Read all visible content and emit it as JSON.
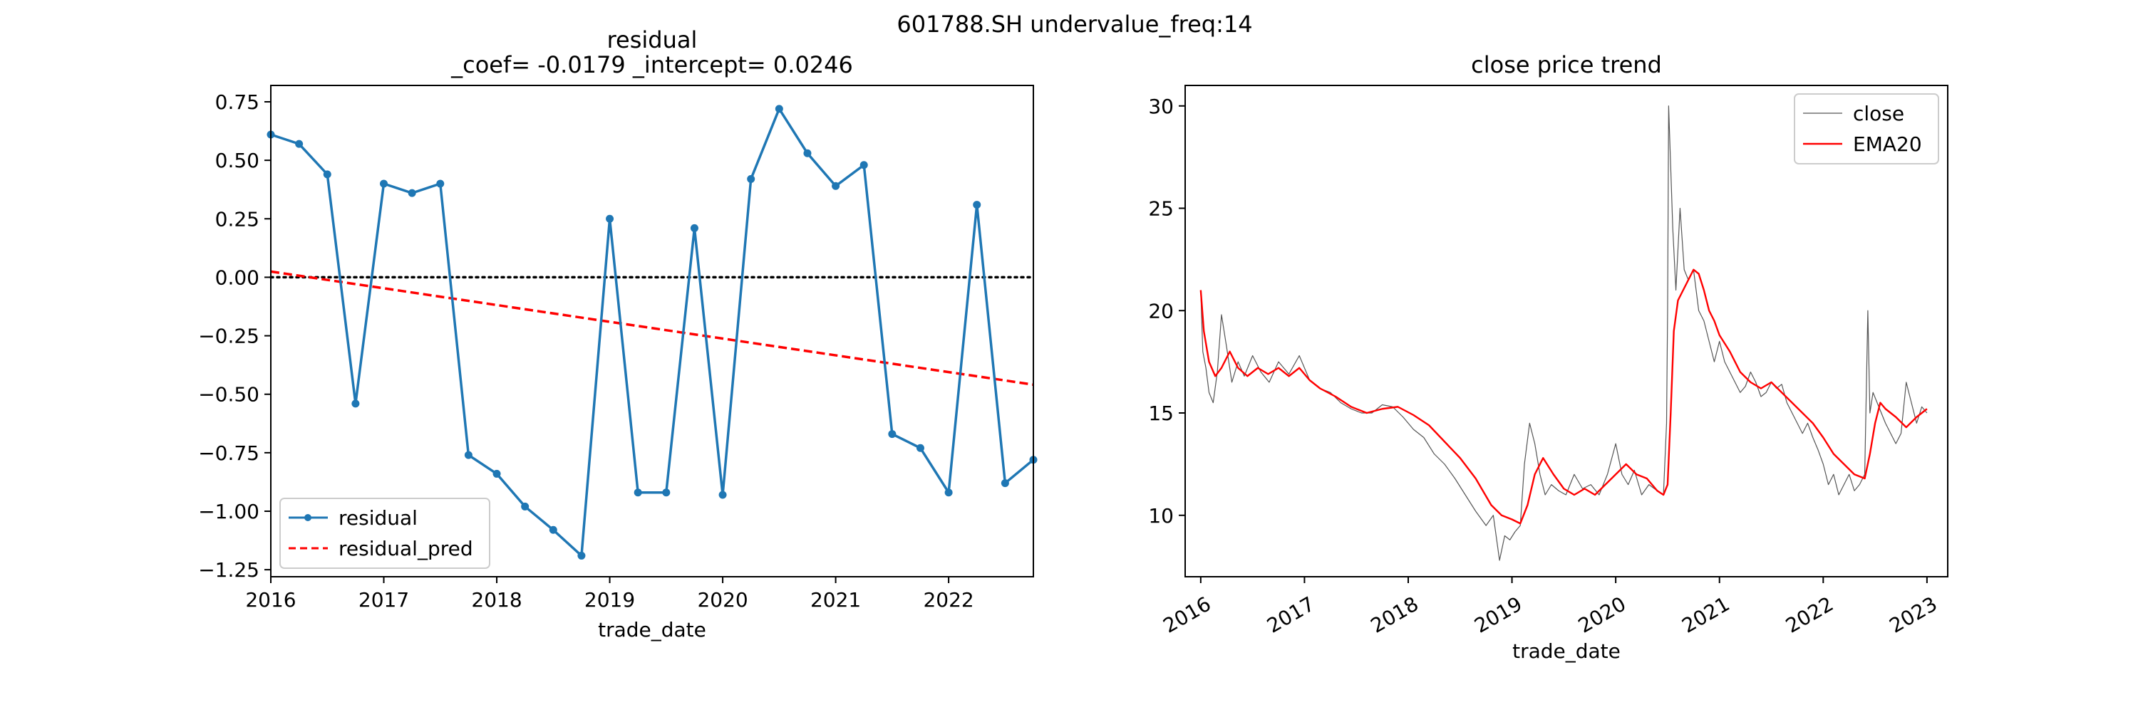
{
  "figure": {
    "suptitle": "601788.SH undervalue_freq:14"
  },
  "chart_data": [
    {
      "type": "line",
      "title_line1": "residual",
      "title_line2": "_coef= -0.0179    _intercept= 0.0246",
      "xlabel": "trade_date",
      "ylabel": "",
      "xlim": [
        2016.0,
        2022.75
      ],
      "ylim": [
        -1.28,
        0.82
      ],
      "x_ticks": [
        2016,
        2017,
        2018,
        2019,
        2020,
        2021,
        2022
      ],
      "x_tick_labels": [
        "2016",
        "2017",
        "2018",
        "2019",
        "2020",
        "2021",
        "2022"
      ],
      "y_ticks": [
        0.75,
        0.5,
        0.25,
        0.0,
        -0.25,
        -0.5,
        -0.75,
        -1.0,
        -1.25
      ],
      "y_tick_labels": [
        "0.75",
        "0.50",
        "0.25",
        "0.00",
        "−0.25",
        "−0.50",
        "−0.75",
        "−1.00",
        "−1.25"
      ],
      "legend_position": "lower-left",
      "grid": false,
      "series": [
        {
          "name": "residual",
          "color": "#1f77b4",
          "style": "solid-with-dots",
          "x": [
            2016.0,
            2016.25,
            2016.5,
            2016.75,
            2017.0,
            2017.25,
            2017.5,
            2017.75,
            2018.0,
            2018.25,
            2018.5,
            2018.75,
            2019.0,
            2019.25,
            2019.5,
            2019.75,
            2020.0,
            2020.25,
            2020.5,
            2020.75,
            2021.0,
            2021.25,
            2021.5,
            2021.75,
            2022.0,
            2022.25,
            2022.5,
            2022.75
          ],
          "values": [
            0.61,
            0.57,
            0.44,
            -0.54,
            0.4,
            0.36,
            0.4,
            -0.76,
            -0.84,
            -0.98,
            -1.08,
            -1.19,
            0.25,
            -0.92,
            -0.92,
            0.21,
            -0.93,
            0.42,
            0.72,
            0.53,
            0.39,
            0.48,
            -0.67,
            -0.73,
            -0.92,
            0.31,
            -0.88,
            -0.78
          ]
        },
        {
          "name": "residual_pred",
          "color": "#ff0000",
          "style": "dashed",
          "x": [
            2016.0,
            2022.75
          ],
          "values": [
            0.0246,
            -0.459
          ]
        }
      ],
      "reference_line": {
        "y": 0.0,
        "color": "#000000",
        "style": "dotted"
      }
    },
    {
      "type": "line",
      "title": "close price trend",
      "xlabel": "trade_date",
      "ylabel": "",
      "xlim": [
        2015.85,
        2023.2
      ],
      "ylim": [
        7.0,
        31.0
      ],
      "x_ticks": [
        2016,
        2017,
        2018,
        2019,
        2020,
        2021,
        2022,
        2023
      ],
      "x_tick_labels": [
        "2016",
        "2017",
        "2018",
        "2019",
        "2020",
        "2021",
        "2022",
        "2023"
      ],
      "y_ticks": [
        30,
        25,
        20,
        15,
        10
      ],
      "y_tick_labels": [
        "30",
        "25",
        "20",
        "15",
        "10"
      ],
      "legend_position": "upper-right",
      "grid": false,
      "series": [
        {
          "name": "close",
          "color": "#555555",
          "style": "thin",
          "x": [
            2016.0,
            2016.02,
            2016.05,
            2016.08,
            2016.12,
            2016.16,
            2016.2,
            2016.25,
            2016.3,
            2016.36,
            2016.42,
            2016.5,
            2016.58,
            2016.66,
            2016.75,
            2016.85,
            2016.95,
            2017.05,
            2017.15,
            2017.25,
            2017.35,
            2017.45,
            2017.55,
            2017.65,
            2017.75,
            2017.85,
            2017.95,
            2018.05,
            2018.15,
            2018.25,
            2018.35,
            2018.45,
            2018.55,
            2018.65,
            2018.75,
            2018.82,
            2018.88,
            2018.93,
            2018.98,
            2019.03,
            2019.08,
            2019.12,
            2019.17,
            2019.22,
            2019.27,
            2019.32,
            2019.38,
            2019.45,
            2019.52,
            2019.6,
            2019.68,
            2019.76,
            2019.84,
            2019.92,
            2020.0,
            2020.06,
            2020.12,
            2020.18,
            2020.25,
            2020.32,
            2020.4,
            2020.46,
            2020.49,
            2020.5,
            2020.51,
            2020.53,
            2020.55,
            2020.58,
            2020.62,
            2020.66,
            2020.7,
            2020.75,
            2020.8,
            2020.85,
            2020.9,
            2020.95,
            2021.0,
            2021.05,
            2021.1,
            2021.15,
            2021.2,
            2021.25,
            2021.3,
            2021.35,
            2021.4,
            2021.45,
            2021.5,
            2021.55,
            2021.6,
            2021.65,
            2021.7,
            2021.75,
            2021.8,
            2021.85,
            2021.9,
            2021.95,
            2022.0,
            2022.05,
            2022.1,
            2022.15,
            2022.2,
            2022.25,
            2022.3,
            2022.35,
            2022.4,
            2022.43,
            2022.45,
            2022.48,
            2022.52,
            2022.56,
            2022.6,
            2022.65,
            2022.7,
            2022.75,
            2022.8,
            2022.85,
            2022.9,
            2022.95,
            2023.0
          ],
          "values": [
            21.0,
            18.0,
            17.2,
            16.0,
            15.5,
            17.0,
            19.8,
            18.2,
            16.5,
            17.5,
            16.8,
            17.8,
            17.0,
            16.5,
            17.5,
            16.9,
            17.8,
            16.6,
            16.2,
            16.0,
            15.5,
            15.2,
            15.0,
            15.0,
            15.4,
            15.3,
            14.8,
            14.2,
            13.8,
            13.0,
            12.5,
            11.8,
            11.0,
            10.2,
            9.5,
            10.0,
            7.8,
            9.0,
            8.8,
            9.2,
            9.5,
            12.5,
            14.5,
            13.5,
            12.0,
            11.0,
            11.5,
            11.2,
            11.0,
            12.0,
            11.3,
            11.5,
            11.0,
            12.0,
            13.5,
            12.0,
            11.5,
            12.2,
            11.0,
            11.5,
            11.2,
            11.0,
            14.5,
            20.0,
            30.0,
            27.0,
            24.0,
            21.0,
            25.0,
            22.0,
            21.5,
            22.0,
            20.0,
            19.5,
            18.5,
            17.5,
            18.5,
            17.5,
            17.0,
            16.5,
            16.0,
            16.3,
            17.0,
            16.5,
            15.8,
            16.0,
            16.5,
            16.2,
            16.4,
            15.5,
            15.0,
            14.5,
            14.0,
            14.5,
            13.8,
            13.2,
            12.5,
            11.5,
            12.0,
            11.0,
            11.5,
            12.0,
            11.2,
            11.5,
            12.0,
            20.0,
            15.0,
            16.0,
            15.5,
            15.0,
            14.5,
            14.0,
            13.5,
            14.0,
            16.5,
            15.5,
            14.5,
            15.3,
            15.0
          ],
          "values_note_unused": ""
        },
        {
          "name": "EMA20",
          "color": "#ff0000",
          "style": "solid",
          "x": [
            2016.0,
            2016.03,
            2016.08,
            2016.14,
            2016.2,
            2016.28,
            2016.36,
            2016.45,
            2016.55,
            2016.65,
            2016.75,
            2016.85,
            2016.95,
            2017.05,
            2017.15,
            2017.3,
            2017.45,
            2017.6,
            2017.75,
            2017.9,
            2018.05,
            2018.2,
            2018.35,
            2018.5,
            2018.65,
            2018.8,
            2018.9,
            2019.0,
            2019.08,
            2019.15,
            2019.22,
            2019.3,
            2019.4,
            2019.5,
            2019.6,
            2019.7,
            2019.8,
            2019.9,
            2020.0,
            2020.1,
            2020.2,
            2020.3,
            2020.4,
            2020.46,
            2020.5,
            2020.53,
            2020.56,
            2020.6,
            2020.65,
            2020.7,
            2020.75,
            2020.8,
            2020.85,
            2020.9,
            2020.95,
            2021.0,
            2021.1,
            2021.2,
            2021.3,
            2021.4,
            2021.5,
            2021.6,
            2021.7,
            2021.8,
            2021.9,
            2022.0,
            2022.1,
            2022.2,
            2022.3,
            2022.4,
            2022.45,
            2022.5,
            2022.55,
            2022.6,
            2022.7,
            2022.8,
            2022.9,
            2023.0
          ],
          "values": [
            21.0,
            19.0,
            17.5,
            16.8,
            17.2,
            18.0,
            17.2,
            16.8,
            17.2,
            16.9,
            17.2,
            16.8,
            17.2,
            16.6,
            16.2,
            15.8,
            15.3,
            15.0,
            15.2,
            15.3,
            14.9,
            14.4,
            13.6,
            12.8,
            11.8,
            10.5,
            10.0,
            9.8,
            9.6,
            10.5,
            12.0,
            12.8,
            12.0,
            11.3,
            11.0,
            11.3,
            11.0,
            11.5,
            12.0,
            12.5,
            12.0,
            11.8,
            11.2,
            11.0,
            11.5,
            15.0,
            19.0,
            20.5,
            21.0,
            21.5,
            22.0,
            21.8,
            21.0,
            20.0,
            19.5,
            18.8,
            18.0,
            17.0,
            16.5,
            16.2,
            16.5,
            16.0,
            15.5,
            15.0,
            14.5,
            13.8,
            13.0,
            12.5,
            12.0,
            11.8,
            13.0,
            14.5,
            15.5,
            15.2,
            14.8,
            14.3,
            14.8,
            15.2
          ]
        }
      ]
    }
  ]
}
